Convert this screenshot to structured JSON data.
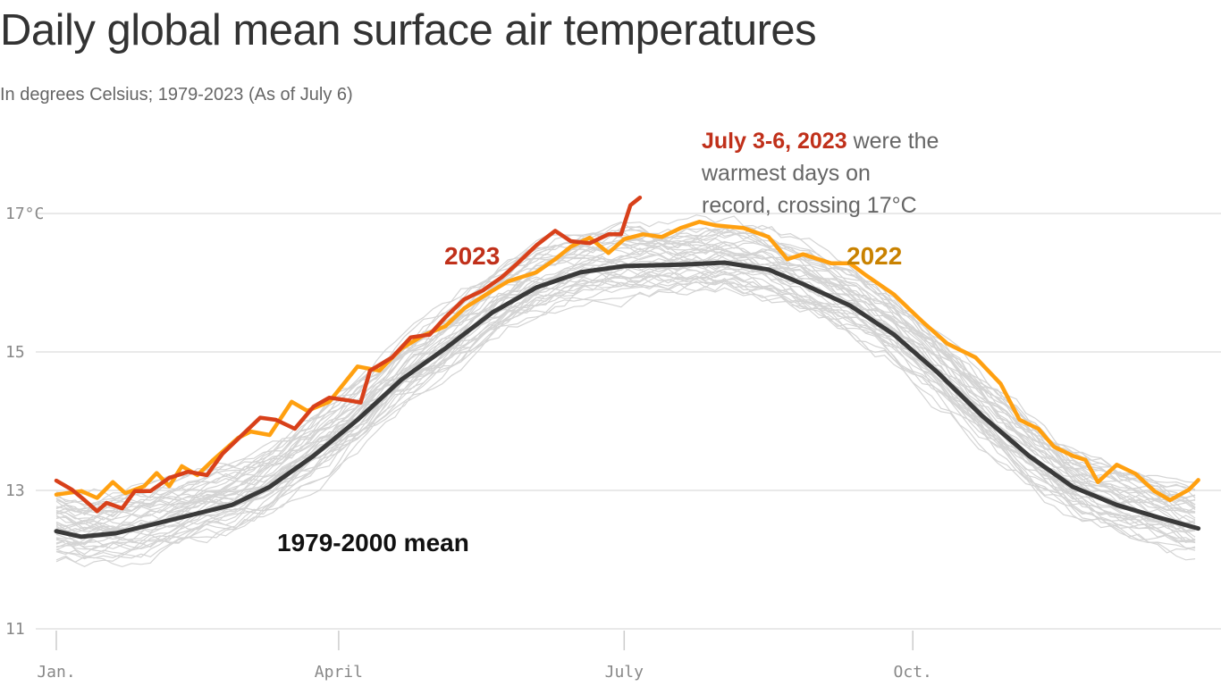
{
  "chart_data": {
    "type": "line",
    "title": "Daily global mean surface air temperatures",
    "subtitle": "In degrees Celsius; 1979-2023 (As of July 6)",
    "xlabel": "",
    "ylabel": "",
    "x_unit": "day of year",
    "xlim": [
      0,
      364
    ],
    "ylim": [
      11,
      17.8
    ],
    "grid": true,
    "y_ticks": [
      {
        "value": 11,
        "label": "11"
      },
      {
        "value": 13,
        "label": "13"
      },
      {
        "value": 15,
        "label": "15"
      },
      {
        "value": 17,
        "label": "17°C"
      }
    ],
    "x_ticks": [
      {
        "value": 0,
        "label": "Jan."
      },
      {
        "value": 90,
        "label": "April"
      },
      {
        "value": 181,
        "label": "July"
      },
      {
        "value": 273,
        "label": "Oct."
      }
    ],
    "series": [
      {
        "name": "1979-2000 mean",
        "color": "#3a3a3a",
        "x": [
          0,
          8,
          19,
          39,
          56,
          68,
          82,
          96,
          110,
          124,
          139,
          153,
          167,
          181,
          199,
          213,
          227,
          238,
          253,
          267,
          281,
          295,
          310,
          324,
          338,
          352,
          364
        ],
        "y": [
          12.41,
          12.33,
          12.38,
          12.6,
          12.79,
          13.05,
          13.5,
          14.02,
          14.6,
          15.05,
          15.57,
          15.93,
          16.15,
          16.24,
          16.26,
          16.29,
          16.19,
          15.98,
          15.67,
          15.25,
          14.7,
          14.08,
          13.5,
          13.05,
          12.79,
          12.6,
          12.45
        ]
      },
      {
        "name": "2022",
        "color": "#ffa010",
        "label_color": "#c98200",
        "x": [
          0,
          8,
          13,
          18,
          22,
          28,
          32,
          36,
          40,
          45,
          50,
          58,
          62,
          68,
          75,
          80,
          87,
          96,
          103,
          110,
          117,
          124,
          130,
          137,
          144,
          153,
          159,
          164,
          170,
          176,
          181,
          187,
          193,
          199,
          205,
          210,
          219,
          227,
          233,
          238,
          247,
          253,
          258,
          267,
          276,
          284,
          293,
          301,
          307,
          313,
          318,
          324,
          328,
          332,
          338,
          344,
          350,
          355,
          361,
          364
        ],
        "y": [
          12.94,
          12.99,
          12.89,
          13.12,
          12.96,
          13.06,
          13.25,
          13.06,
          13.35,
          13.22,
          13.44,
          13.76,
          13.85,
          13.8,
          14.28,
          14.15,
          14.28,
          14.79,
          14.73,
          15.05,
          15.24,
          15.37,
          15.63,
          15.83,
          16.02,
          16.15,
          16.34,
          16.52,
          16.65,
          16.43,
          16.63,
          16.7,
          16.66,
          16.79,
          16.88,
          16.83,
          16.79,
          16.66,
          16.34,
          16.41,
          16.28,
          16.28,
          16.11,
          15.83,
          15.44,
          15.12,
          14.92,
          14.54,
          14.02,
          13.89,
          13.63,
          13.5,
          13.44,
          13.12,
          13.37,
          13.24,
          12.99,
          12.86,
          13.01,
          13.15
        ]
      },
      {
        "name": "2023",
        "color": "#d8401a",
        "label_color": "#c0301a",
        "x": [
          0,
          5,
          9,
          13,
          16,
          21,
          25,
          30,
          36,
          42,
          48,
          53,
          59,
          65,
          70,
          76,
          82,
          87,
          93,
          97,
          100,
          107,
          113,
          119,
          124,
          130,
          136,
          142,
          147,
          153,
          159,
          164,
          170,
          176,
          180,
          183,
          186
        ],
        "y": [
          13.14,
          13.01,
          12.86,
          12.7,
          12.82,
          12.74,
          12.99,
          12.99,
          13.18,
          13.27,
          13.22,
          13.53,
          13.79,
          14.05,
          14.02,
          13.89,
          14.21,
          14.34,
          14.3,
          14.27,
          14.73,
          14.92,
          15.21,
          15.25,
          15.5,
          15.76,
          15.89,
          16.08,
          16.28,
          16.54,
          16.75,
          16.6,
          16.57,
          16.7,
          16.7,
          17.12,
          17.23
        ]
      }
    ],
    "labels": {
      "mean": "1979-2000 mean",
      "y2022": "2022",
      "y2023": "2023"
    },
    "annotation": {
      "highlight": "July 3-6, 2023",
      "line1_rest": " were the",
      "line2": "warmest days on",
      "line3": "record, crossing 17°C"
    },
    "background_series_color": "#d4d4d4"
  }
}
